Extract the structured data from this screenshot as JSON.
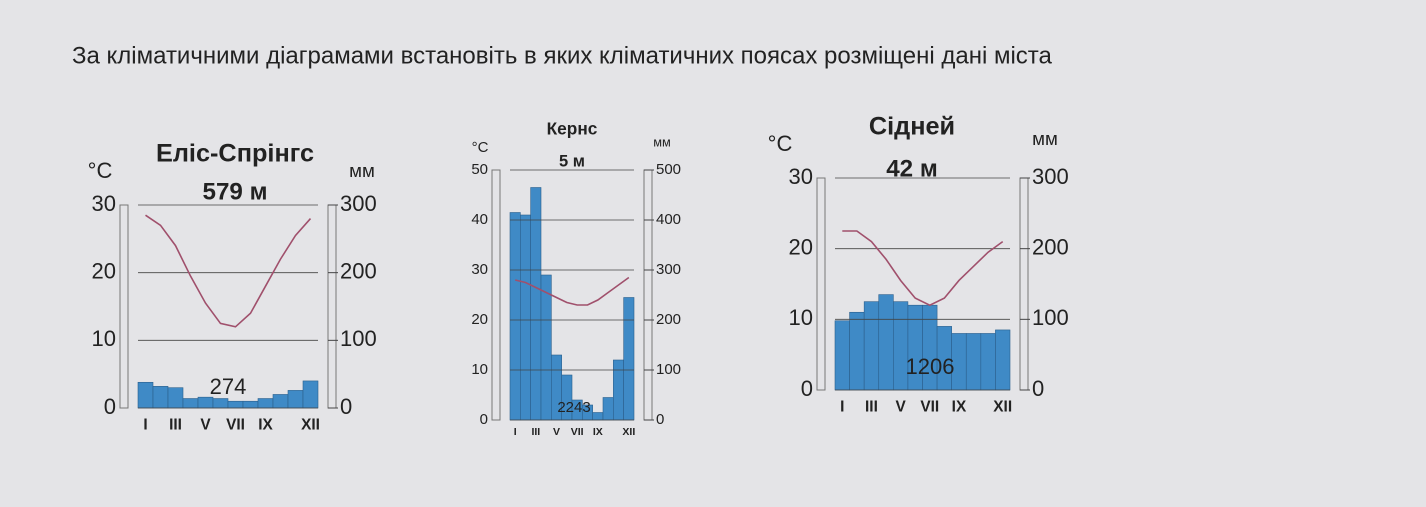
{
  "instruction": "За кліматичними діаграмами встановіть в яких кліматичних поясах розміщені дані міста",
  "chart_data": [
    {
      "type": "climate",
      "title": "Еліс-Спрінгс",
      "subtitle": "579 м",
      "annotation": 274,
      "ylabel": "°C",
      "y2label": "мм",
      "categories": [
        "I",
        null,
        "III",
        null,
        "V",
        null,
        "VII",
        null,
        "IX",
        null,
        null,
        "XII"
      ],
      "ylim": [
        0,
        30
      ],
      "yticks": [
        0,
        10,
        20,
        30
      ],
      "y2lim": [
        0,
        300
      ],
      "y2ticks": [
        0,
        100,
        200,
        300
      ],
      "grid": true,
      "series": [
        {
          "type": "bar",
          "axis": "y2",
          "color": "#3f8ac6",
          "values": [
            38,
            32,
            30,
            14,
            16,
            14,
            10,
            10,
            14,
            20,
            26,
            40
          ]
        },
        {
          "type": "line",
          "axis": "y",
          "color": "#a0506c",
          "values": [
            28.5,
            27,
            24,
            19.5,
            15.5,
            12.5,
            12,
            14,
            18,
            22,
            25.5,
            28
          ]
        }
      ]
    },
    {
      "type": "climate",
      "title": "Кернс",
      "subtitle": "5 м",
      "annotation": 2243,
      "ylabel": "°C",
      "y2label": "мм",
      "categories": [
        "I",
        null,
        "III",
        null,
        "V",
        null,
        "VII",
        null,
        "IX",
        null,
        null,
        "XII"
      ],
      "ylim": [
        0,
        50
      ],
      "yticks": [
        0,
        10,
        20,
        30,
        40,
        50
      ],
      "y2lim": [
        0,
        500
      ],
      "y2ticks": [
        0,
        100,
        200,
        300,
        400,
        500
      ],
      "grid": true,
      "series": [
        {
          "type": "bar",
          "axis": "y2",
          "color": "#3f8ac6",
          "values": [
            415,
            410,
            465,
            290,
            130,
            90,
            40,
            30,
            15,
            45,
            120,
            245
          ]
        },
        {
          "type": "line",
          "axis": "y",
          "color": "#a0506c",
          "values": [
            28,
            27.5,
            26.5,
            25.5,
            24.5,
            23.5,
            23,
            23,
            24,
            25.5,
            27,
            28.5
          ]
        }
      ]
    },
    {
      "type": "climate",
      "title": "Сідней",
      "subtitle": "42 м",
      "annotation": 1206,
      "ylabel": "°C",
      "y2label": "мм",
      "categories": [
        "I",
        null,
        "III",
        null,
        "V",
        null,
        "VII",
        null,
        "IX",
        null,
        null,
        "XII"
      ],
      "ylim": [
        0,
        30
      ],
      "yticks": [
        0,
        10,
        20,
        30
      ],
      "y2lim": [
        0,
        300
      ],
      "y2ticks": [
        0,
        100,
        200,
        300
      ],
      "grid": true,
      "series": [
        {
          "type": "bar",
          "axis": "y2",
          "color": "#3f8ac6",
          "values": [
            98,
            110,
            125,
            135,
            125,
            120,
            120,
            90,
            80,
            80,
            80,
            85
          ]
        },
        {
          "type": "line",
          "axis": "y",
          "color": "#a0506c",
          "values": [
            22.5,
            22.5,
            21,
            18.5,
            15.5,
            13,
            12,
            13,
            15.5,
            17.5,
            19.5,
            21
          ]
        }
      ]
    }
  ]
}
